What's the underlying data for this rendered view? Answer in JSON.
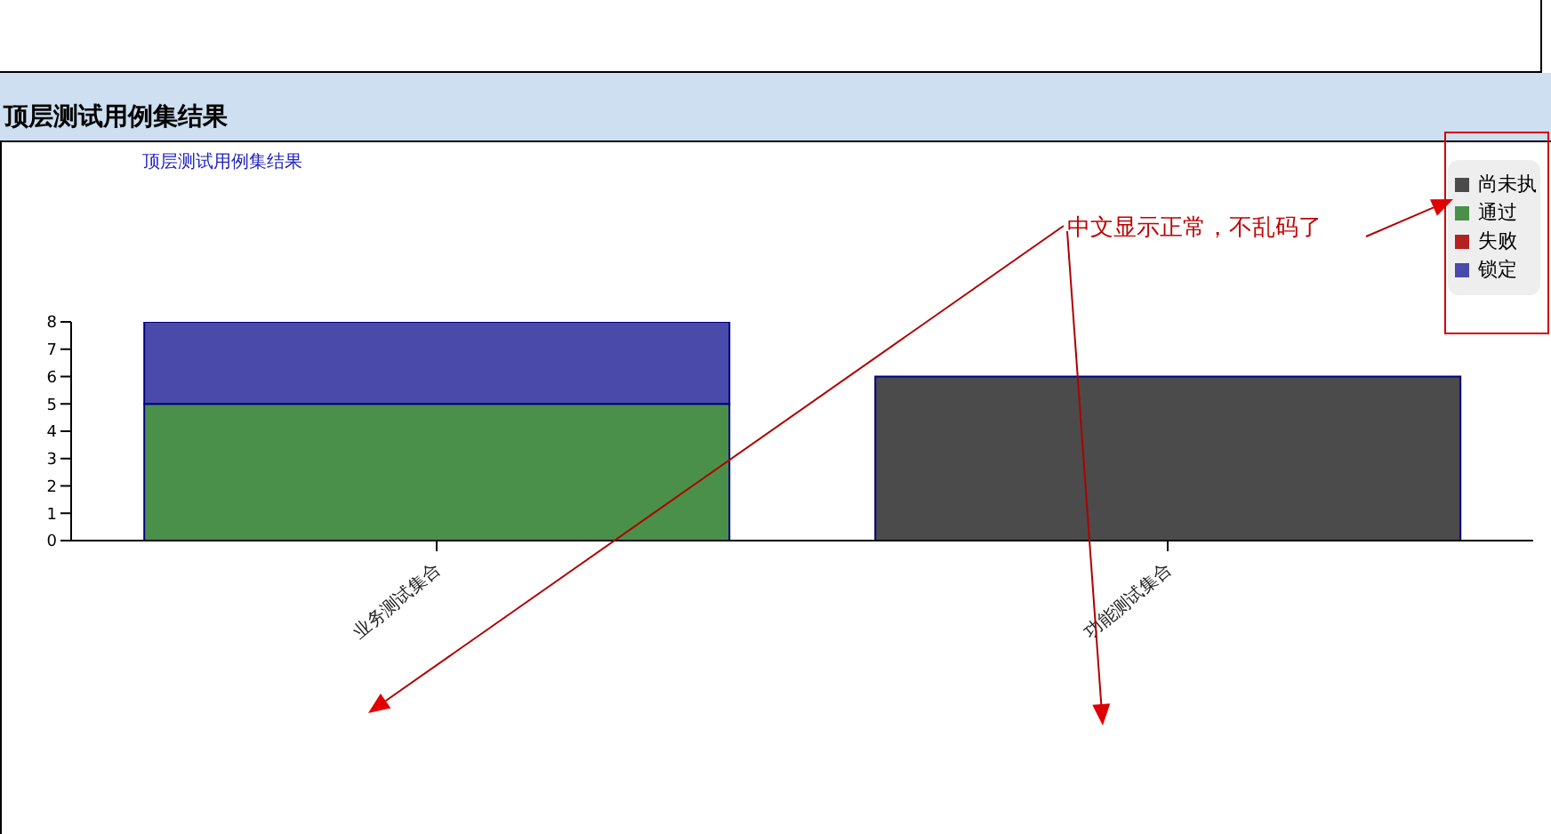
{
  "chart_data": {
    "type": "bar",
    "title": "顶层测试用例集结果",
    "subtitle": "顶层测试用例集结果",
    "categories": [
      "业务测试集合",
      "功能测试集合"
    ],
    "series": [
      {
        "name": "尚未执",
        "color": "#4b4b4b",
        "values": [
          0,
          6
        ]
      },
      {
        "name": "通过",
        "color": "#4a904a",
        "values": [
          5,
          0
        ]
      },
      {
        "name": "失败",
        "color": "#b22222",
        "values": [
          0,
          0
        ]
      },
      {
        "name": "锁定",
        "color": "#4a4aab",
        "values": [
          3,
          0
        ]
      }
    ],
    "stacked": true,
    "ylim": [
      0,
      8
    ],
    "yticks": [
      0,
      1,
      2,
      3,
      4,
      5,
      6,
      7,
      8
    ],
    "grid": false,
    "legend": "top right",
    "annotations": [
      "中文显示正常，不乱码了"
    ]
  }
}
